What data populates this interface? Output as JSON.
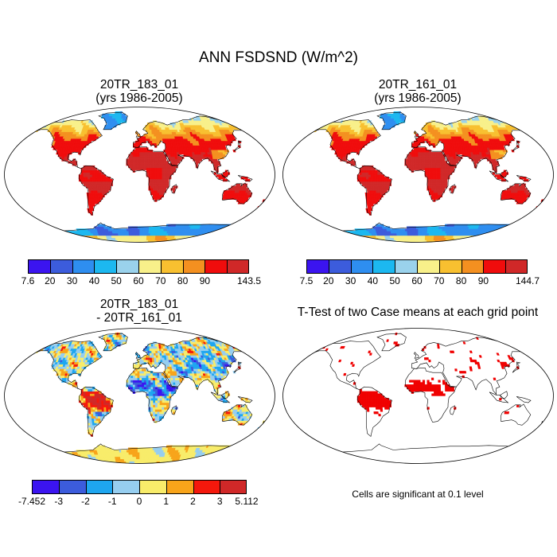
{
  "title": "ANN FSDSND (W/m^2)",
  "palette": [
    "#3b14f0",
    "#3c5cdc",
    "#2e8ef0",
    "#1cb8f0",
    "#9ad2ec",
    "#f8f08a",
    "#f8c030",
    "#f49020",
    "#f00c0c",
    "#d02828"
  ],
  "diff_palette": [
    "#3b14f0",
    "#3c5cdc",
    "#1ea6f0",
    "#96cef0",
    "#f8ec6a",
    "#f8a41a",
    "#f4180c",
    "#d02828"
  ],
  "panels": {
    "top_left": {
      "title": "20TR_183_01",
      "subtitle": "(yrs 1986-2005)",
      "colorbar": [
        "7.6",
        "20",
        "30",
        "40",
        "50",
        "60",
        "70",
        "80",
        "90",
        "143.5"
      ]
    },
    "top_right": {
      "title": "20TR_161_01",
      "subtitle": "(yrs 1986-2005)",
      "colorbar": [
        "7.5",
        "20",
        "30",
        "40",
        "50",
        "60",
        "70",
        "80",
        "90",
        "144.7"
      ]
    },
    "bottom_left": {
      "title": "20TR_183_01",
      "subtitle": "- 20TR_161_01",
      "colorbar": [
        "-7.452",
        "-3",
        "-2",
        "-1",
        "0",
        "1",
        "2",
        "3",
        "5.112"
      ]
    },
    "bottom_right": {
      "title": "T-Test of two Case means at each grid point",
      "note": "Cells are significant at 0.1 level",
      "sig_color": "#f00000"
    }
  }
}
